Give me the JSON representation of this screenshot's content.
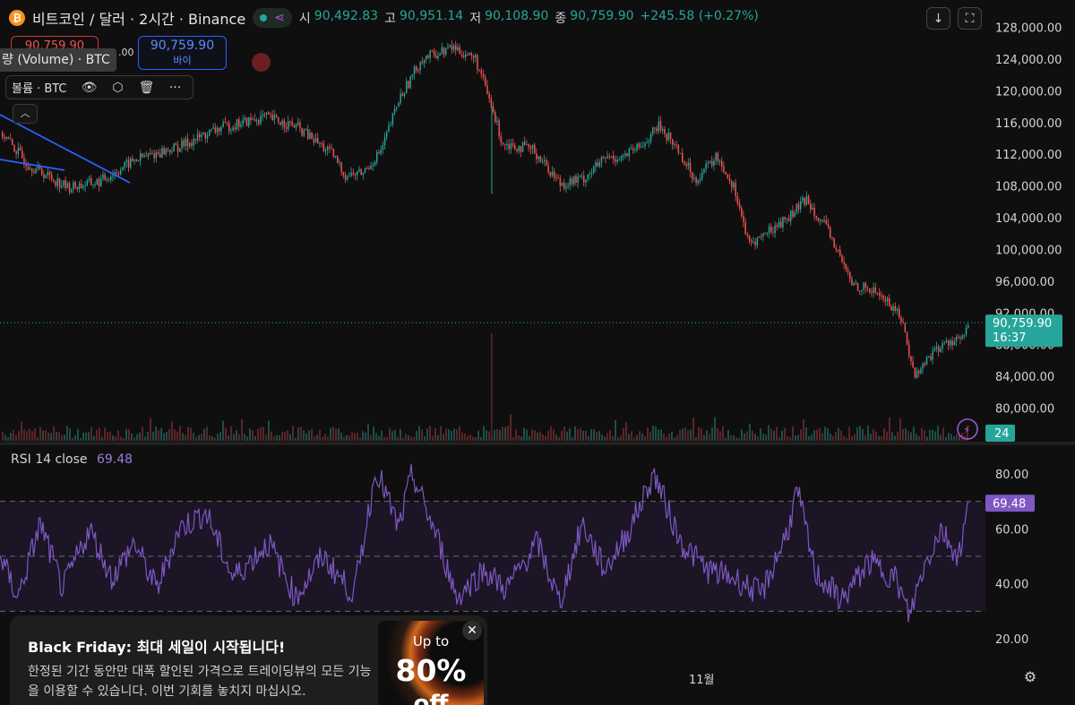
{
  "header": {
    "coin_icon": "bitcoin-icon",
    "coin_glyph": "₿",
    "symbol_title": "비트코인 / 달러 · 2시간 · Binance",
    "share_icon": "share-icon",
    "ohlc": [
      {
        "key": "시",
        "value": "90,492.83"
      },
      {
        "key": "고",
        "value": "90,951.14"
      },
      {
        "key": "저",
        "value": "90,108.90"
      },
      {
        "key": "종",
        "value": "90,759.90"
      }
    ],
    "change": "+245.58 (+0.27%)",
    "download_icon": "↓",
    "fullscreen_icon": "⛶"
  },
  "trade": {
    "sell_price": "90,759.90",
    "spread": ".00",
    "buy_price": "90,759.90",
    "buy_label": "바이"
  },
  "tooltip": "량 (Volume) · BTC",
  "indicator": {
    "name": "볼륨 · BTC",
    "icons": [
      "eye-icon",
      "settings-icon",
      "trash-icon",
      "more-icon"
    ],
    "glyphs": [
      "👁",
      "⬡",
      "🗑",
      "···"
    ]
  },
  "collapse_glyph": "︿",
  "colors": {
    "up": "#26a69a",
    "down": "#ef5350",
    "rsi_line": "#7e57c2",
    "trendline": "#2962ff",
    "background": "#0f0f0f"
  },
  "price_axis": {
    "ticks": [
      "128,000.00",
      "124,000.00",
      "120,000.00",
      "116,000.00",
      "112,000.00",
      "108,000.00",
      "104,000.00",
      "100,000.00",
      "96,000.00",
      "92,000.00",
      "88,000.00",
      "84,000.00",
      "80,000.00"
    ],
    "current_price": "90,759.90",
    "countdown": "16:37",
    "volume_value": "24"
  },
  "rsi": {
    "label": "RSI 14 close",
    "value": "69.48",
    "ticks": [
      "80.00",
      "60.00",
      "40.00",
      "20.00"
    ],
    "bands": {
      "upper": 70,
      "middle": 50,
      "lower": 30
    }
  },
  "time_axis": {
    "month_label": "11월"
  },
  "promo": {
    "title": "Black Friday: 최대 세일이 시작됩니다!",
    "body": "한정된 기간 동안만 대폭 할인된 가격으로 트레이딩뷰의 모든 기능을 이용할 수 있습니다. 이번 기회를 놓치지 마십시오.",
    "badge_up": "Up to",
    "badge_pct": "80%",
    "badge_off": "off",
    "close_glyph": "✕"
  },
  "chart_data": {
    "type": "candlestick",
    "title": "비트코인 / 달러 · 2시간 · Binance",
    "ylim": [
      78000,
      130000
    ],
    "price_path": [
      [
        0,
        114800
      ],
      [
        30,
        110800
      ],
      [
        75,
        107800
      ],
      [
        110,
        108500
      ],
      [
        150,
        111300
      ],
      [
        200,
        113000
      ],
      [
        245,
        115300
      ],
      [
        295,
        116700
      ],
      [
        330,
        115500
      ],
      [
        370,
        112000
      ],
      [
        385,
        109300
      ],
      [
        405,
        109700
      ],
      [
        425,
        112500
      ],
      [
        445,
        119000
      ],
      [
        470,
        124000
      ],
      [
        505,
        125500
      ],
      [
        530,
        124000
      ],
      [
        545,
        119000
      ],
      [
        560,
        113500
      ],
      [
        595,
        112500
      ],
      [
        625,
        108300
      ],
      [
        650,
        108900
      ],
      [
        675,
        111500
      ],
      [
        695,
        111700
      ],
      [
        715,
        113000
      ],
      [
        735,
        115600
      ],
      [
        755,
        112800
      ],
      [
        775,
        108800
      ],
      [
        800,
        111700
      ],
      [
        820,
        107500
      ],
      [
        835,
        100500
      ],
      [
        860,
        102500
      ],
      [
        880,
        104100
      ],
      [
        900,
        106400
      ],
      [
        925,
        102000
      ],
      [
        950,
        95700
      ],
      [
        980,
        94500
      ],
      [
        1005,
        91600
      ],
      [
        1020,
        84000
      ],
      [
        1040,
        87000
      ],
      [
        1060,
        88500
      ],
      [
        1075,
        88800
      ],
      [
        1082,
        90760
      ]
    ],
    "rsi_path": [
      [
        0,
        50
      ],
      [
        20,
        35
      ],
      [
        45,
        62
      ],
      [
        70,
        38
      ],
      [
        100,
        60
      ],
      [
        125,
        42
      ],
      [
        150,
        55
      ],
      [
        175,
        38
      ],
      [
        200,
        60
      ],
      [
        230,
        66
      ],
      [
        260,
        42
      ],
      [
        300,
        55
      ],
      [
        330,
        35
      ],
      [
        360,
        50
      ],
      [
        395,
        36
      ],
      [
        420,
        82
      ],
      [
        445,
        60
      ],
      [
        460,
        80
      ],
      [
        490,
        55
      ],
      [
        510,
        35
      ],
      [
        540,
        45
      ],
      [
        565,
        38
      ],
      [
        600,
        55
      ],
      [
        625,
        33
      ],
      [
        650,
        62
      ],
      [
        675,
        45
      ],
      [
        700,
        58
      ],
      [
        730,
        80
      ],
      [
        760,
        55
      ],
      [
        790,
        45
      ],
      [
        820,
        42
      ],
      [
        850,
        36
      ],
      [
        880,
        60
      ],
      [
        890,
        74
      ],
      [
        910,
        44
      ],
      [
        940,
        34
      ],
      [
        970,
        48
      ],
      [
        1000,
        42
      ],
      [
        1015,
        28
      ],
      [
        1030,
        45
      ],
      [
        1050,
        60
      ],
      [
        1070,
        50
      ],
      [
        1082,
        69.48
      ]
    ],
    "rsi_ylim": [
      15,
      90
    ]
  }
}
